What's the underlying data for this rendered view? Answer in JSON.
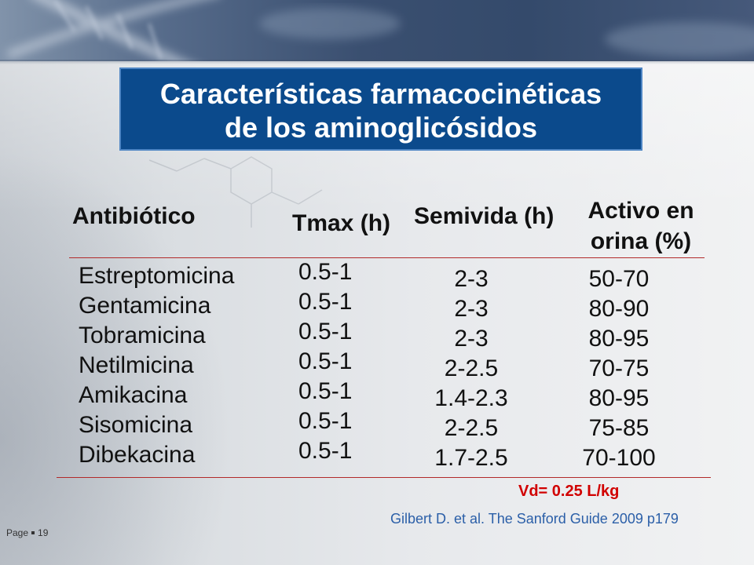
{
  "slide": {
    "title": {
      "line1": "Características farmacocinéticas",
      "line2": "de los aminoglicósidos"
    },
    "table": {
      "headers": {
        "antibiotic": "Antibiótico",
        "tmax": "Tmax (h)",
        "half_life": "Semivida (h)",
        "urine_active_line1": "Activo en",
        "urine_active_line2": "orina (%)"
      },
      "rows": [
        {
          "antibiotic": "Estreptomicina",
          "tmax": "0.5-1",
          "half_life": "2-3",
          "urine_active": "50-70"
        },
        {
          "antibiotic": "Gentamicina",
          "tmax": "0.5-1",
          "half_life": "2-3",
          "urine_active": "80-90"
        },
        {
          "antibiotic": "Tobramicina",
          "tmax": "0.5-1",
          "half_life": "2-3",
          "urine_active": "80-95"
        },
        {
          "antibiotic": "Netilmicina",
          "tmax": "0.5-1",
          "half_life": "2-2.5",
          "urine_active": "70-75"
        },
        {
          "antibiotic": "Amikacina",
          "tmax": "0.5-1",
          "half_life": "1.4-2.3",
          "urine_active": "80-95"
        },
        {
          "antibiotic": "Sisomicina",
          "tmax": "0.5-1",
          "half_life": "2-2.5",
          "urine_active": "75-85"
        },
        {
          "antibiotic": "Dibekacina",
          "tmax": "0.5-1",
          "half_life": "1.7-2.5",
          "urine_active": "70-100"
        }
      ]
    },
    "vd_note": "Vd= 0.25 L/kg",
    "citation": "Gilbert D. et al. The Sanford Guide 2009 p179",
    "footer": {
      "page_label": "Page",
      "page_number": "19"
    }
  },
  "colors": {
    "title_box": "#0b4a8c",
    "title_border": "#4f86c4",
    "title_text": "#ffffff",
    "rule": "#b22a2a",
    "vd_note": "#d10000",
    "citation": "#2b5fa8"
  },
  "icons": {
    "header_decoration": "dna-helix-graphic",
    "background_decoration": "molecule-structure-graphic",
    "footer_separator": "bullet-square-icon"
  }
}
